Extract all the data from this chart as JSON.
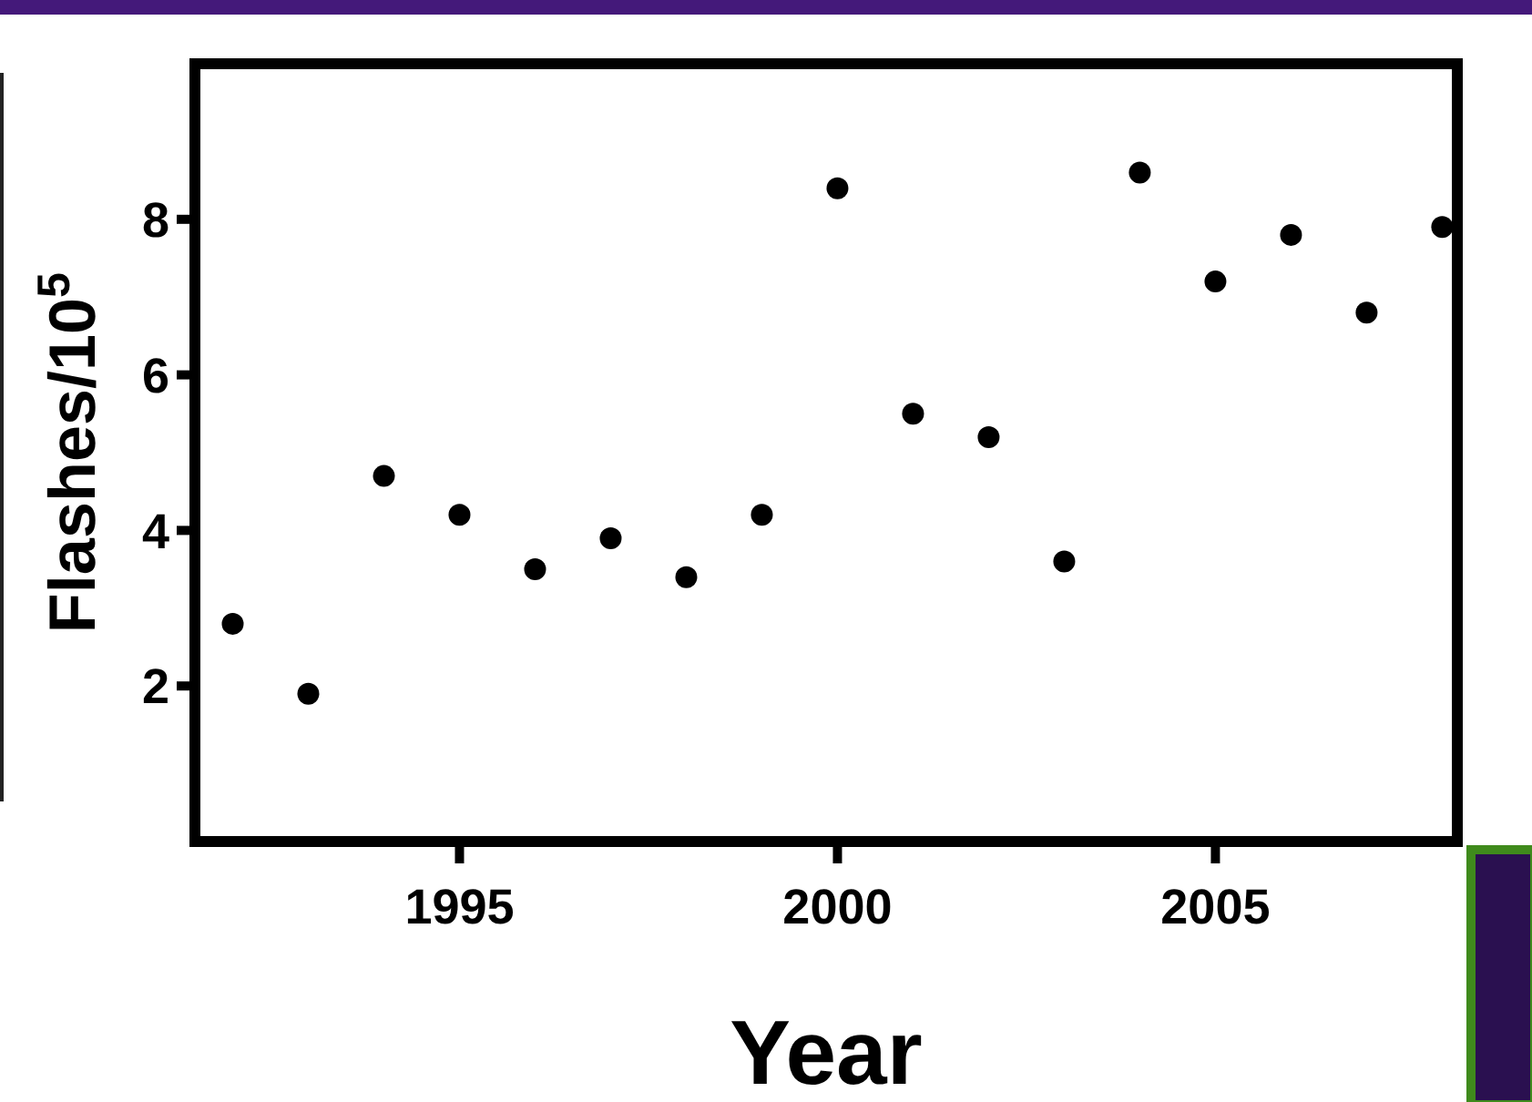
{
  "chart_data": {
    "type": "scatter",
    "xlabel": "Year",
    "ylabel": "Flashes/10$^{5}$",
    "x": [
      1992,
      1993,
      1994,
      1995,
      1996,
      1997,
      1998,
      1999,
      2000,
      2001,
      2002,
      2003,
      2004,
      2005,
      2006,
      2007,
      2008
    ],
    "values": [
      2.8,
      1.9,
      4.7,
      4.2,
      3.5,
      3.9,
      3.4,
      4.2,
      8.4,
      5.5,
      5.2,
      3.6,
      8.6,
      7.2,
      7.8,
      6.8,
      7.9
    ],
    "color": "#000000",
    "marker": "circle",
    "xlim": [
      1991.5,
      2008.2
    ],
    "xticks": [
      1995,
      2000,
      2005
    ],
    "ylim": [
      0,
      10
    ],
    "yticks": [
      2,
      4,
      6,
      8
    ]
  }
}
